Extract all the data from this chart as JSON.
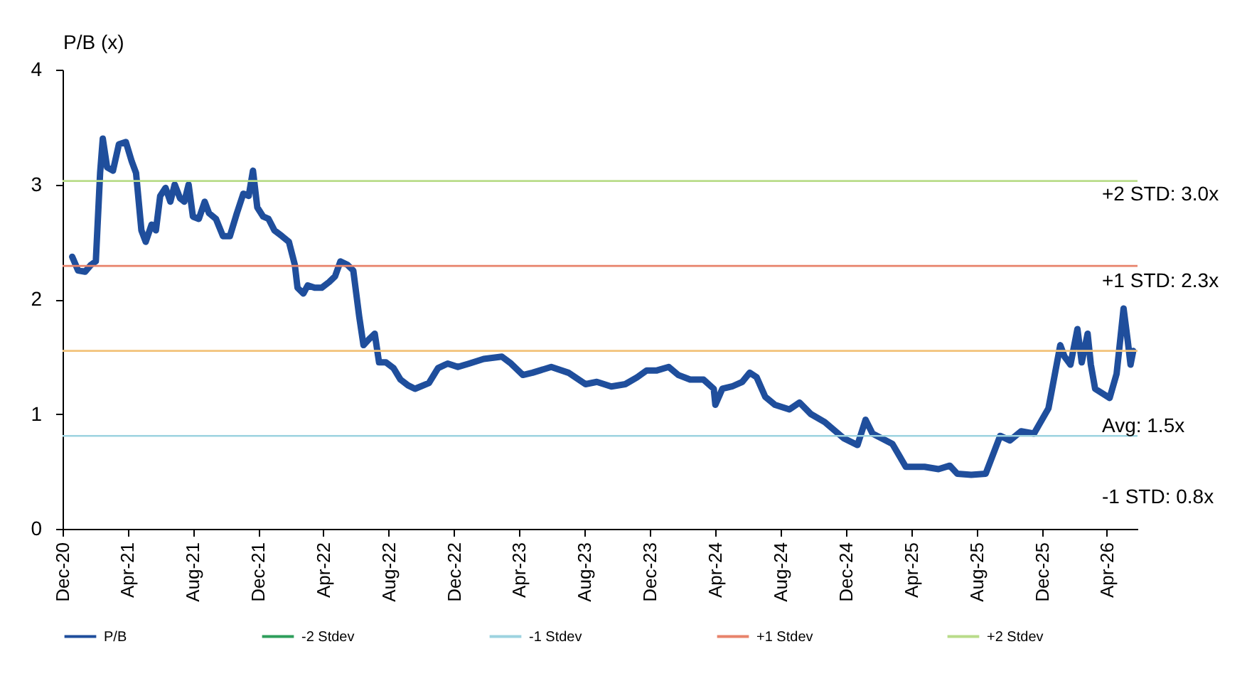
{
  "chart_data": {
    "type": "line",
    "ylabel": "P/B (x)",
    "xlim": [
      "2020-12-01",
      "2026-05-28"
    ],
    "xticks": [
      {
        "value": "2020-12-01",
        "label": "Dec-20"
      },
      {
        "value": "2021-04-01",
        "label": "Apr-21"
      },
      {
        "value": "2021-08-01",
        "label": "Aug-21"
      },
      {
        "value": "2021-12-01",
        "label": "Dec-21"
      },
      {
        "value": "2022-04-01",
        "label": "Apr-22"
      },
      {
        "value": "2022-08-01",
        "label": "Aug-22"
      },
      {
        "value": "2022-12-01",
        "label": "Dec-22"
      },
      {
        "value": "2023-04-01",
        "label": "Apr-23"
      },
      {
        "value": "2023-08-01",
        "label": "Aug-23"
      },
      {
        "value": "2023-12-01",
        "label": "Dec-23"
      },
      {
        "value": "2024-04-01",
        "label": "Apr-24"
      },
      {
        "value": "2024-08-01",
        "label": "Aug-24"
      },
      {
        "value": "2024-12-01",
        "label": "Dec-24"
      },
      {
        "value": "2025-04-01",
        "label": "Apr-25"
      },
      {
        "value": "2025-08-01",
        "label": "Aug-25"
      },
      {
        "value": "2025-12-01",
        "label": "Dec-25"
      },
      {
        "value": "2026-04-01",
        "label": "Apr-26"
      }
    ],
    "ylim": [
      0,
      4
    ],
    "yticks": [
      0,
      1,
      2,
      3,
      4
    ],
    "grid": false,
    "legend": "bottom",
    "series": [
      {
        "name": "P/B",
        "color": "#1f4e9c",
        "x": [
          "2020-12-19",
          "2020-12-30",
          "2021-01-12",
          "2021-01-23",
          "2021-02-01",
          "2021-02-09",
          "2021-02-14",
          "2021-02-22",
          "2021-03-05",
          "2021-03-16",
          "2021-03-29",
          "2021-04-09",
          "2021-04-17",
          "2021-04-27",
          "2021-05-05",
          "2021-05-16",
          "2021-05-24",
          "2021-06-01",
          "2021-06-11",
          "2021-06-20",
          "2021-06-28",
          "2021-07-08",
          "2021-07-16",
          "2021-07-24",
          "2021-08-01",
          "2021-08-12",
          "2021-08-23",
          "2021-08-31",
          "2021-09-13",
          "2021-09-26",
          "2021-10-09",
          "2021-10-22",
          "2021-11-03",
          "2021-11-13",
          "2021-11-21",
          "2021-11-29",
          "2021-12-10",
          "2021-12-20",
          "2021-12-31",
          "2022-01-14",
          "2022-01-27",
          "2022-02-07",
          "2022-02-12",
          "2022-02-23",
          "2022-03-03",
          "2022-03-16",
          "2022-03-29",
          "2022-04-12",
          "2022-04-23",
          "2022-05-03",
          "2022-05-16",
          "2022-05-27",
          "2022-06-07",
          "2022-06-15",
          "2022-06-25",
          "2022-07-06",
          "2022-07-14",
          "2022-07-27",
          "2022-08-10",
          "2022-08-23",
          "2022-09-06",
          "2022-09-19",
          "2022-10-15",
          "2022-11-01",
          "2022-11-19",
          "2022-12-08",
          "2022-12-29",
          "2023-01-25",
          "2023-02-28",
          "2023-03-17",
          "2023-04-08",
          "2023-04-26",
          "2023-05-31",
          "2023-07-02",
          "2023-08-03",
          "2023-08-24",
          "2023-09-20",
          "2023-10-16",
          "2023-11-07",
          "2023-11-25",
          "2023-12-14",
          "2024-01-05",
          "2024-01-23",
          "2024-02-14",
          "2024-03-10",
          "2024-03-29",
          "2024-04-01",
          "2024-04-14",
          "2024-05-02",
          "2024-05-21",
          "2024-06-04",
          "2024-06-17",
          "2024-07-03",
          "2024-07-21",
          "2024-08-17",
          "2024-09-05",
          "2024-09-26",
          "2024-10-22",
          "2024-11-26",
          "2024-12-22",
          "2025-01-06",
          "2025-01-19",
          "2025-02-25",
          "2025-03-22",
          "2025-04-26",
          "2025-05-22",
          "2025-06-12",
          "2025-06-26",
          "2025-07-22",
          "2025-08-18",
          "2025-09-14",
          "2025-10-02",
          "2025-10-23",
          "2025-11-16",
          "2025-12-13",
          "2026-01-04",
          "2026-01-12",
          "2026-01-23",
          "2026-02-05",
          "2026-02-13",
          "2026-02-24",
          "2026-03-02",
          "2026-03-10",
          "2026-04-06",
          "2026-04-19",
          "2026-05-02",
          "2026-05-10",
          "2026-05-15",
          "2026-05-20"
        ],
        "values": [
          2.37,
          2.25,
          2.24,
          2.3,
          2.33,
          3.1,
          3.4,
          3.15,
          3.12,
          3.35,
          3.37,
          3.2,
          3.1,
          2.6,
          2.5,
          2.65,
          2.6,
          2.9,
          2.97,
          2.85,
          3.0,
          2.88,
          2.85,
          3.0,
          2.72,
          2.7,
          2.85,
          2.75,
          2.7,
          2.55,
          2.55,
          2.75,
          2.92,
          2.9,
          3.12,
          2.8,
          2.72,
          2.7,
          2.6,
          2.55,
          2.5,
          2.3,
          2.1,
          2.05,
          2.12,
          2.1,
          2.1,
          2.15,
          2.2,
          2.33,
          2.3,
          2.25,
          1.85,
          1.6,
          1.65,
          1.7,
          1.45,
          1.45,
          1.4,
          1.3,
          1.25,
          1.22,
          1.27,
          1.4,
          1.44,
          1.41,
          1.44,
          1.48,
          1.5,
          1.44,
          1.34,
          1.36,
          1.41,
          1.36,
          1.26,
          1.28,
          1.24,
          1.26,
          1.32,
          1.38,
          1.38,
          1.41,
          1.34,
          1.3,
          1.3,
          1.22,
          1.08,
          1.22,
          1.24,
          1.28,
          1.36,
          1.32,
          1.15,
          1.08,
          1.04,
          1.1,
          1.0,
          0.93,
          0.79,
          0.73,
          0.95,
          0.83,
          0.74,
          0.54,
          0.54,
          0.52,
          0.55,
          0.48,
          0.47,
          0.48,
          0.81,
          0.77,
          0.85,
          0.83,
          1.05,
          1.6,
          1.5,
          1.43,
          1.74,
          1.45,
          1.7,
          1.43,
          1.22,
          1.14,
          1.35,
          1.92,
          1.63,
          1.43,
          1.55
        ]
      },
      {
        "name": "-2 Stdev",
        "color": "#2e9e5b"
      },
      {
        "name": "-1 Stdev",
        "color": "#9dd3e0",
        "x": [
          "2020-12-01",
          "2026-05-28"
        ],
        "values": [
          0.81,
          0.81
        ]
      },
      {
        "name": "+1 Stdev",
        "color": "#e8836b",
        "x": [
          "2020-12-01",
          "2026-05-28"
        ],
        "values": [
          2.29,
          2.29
        ]
      },
      {
        "name": "+2 Stdev",
        "color": "#b9dc8a",
        "x": [
          "2020-12-01",
          "2026-05-28"
        ],
        "values": [
          3.03,
          3.03
        ]
      }
    ],
    "ref_lines": [
      {
        "axis": "y",
        "value": 1.55,
        "color": "#f2c27a"
      }
    ],
    "annotations": [
      "+2 STD: 3.0x",
      "+1 STD: 2.3x",
      "Avg: 1.5x",
      "-1 STD: 0.8x"
    ]
  }
}
